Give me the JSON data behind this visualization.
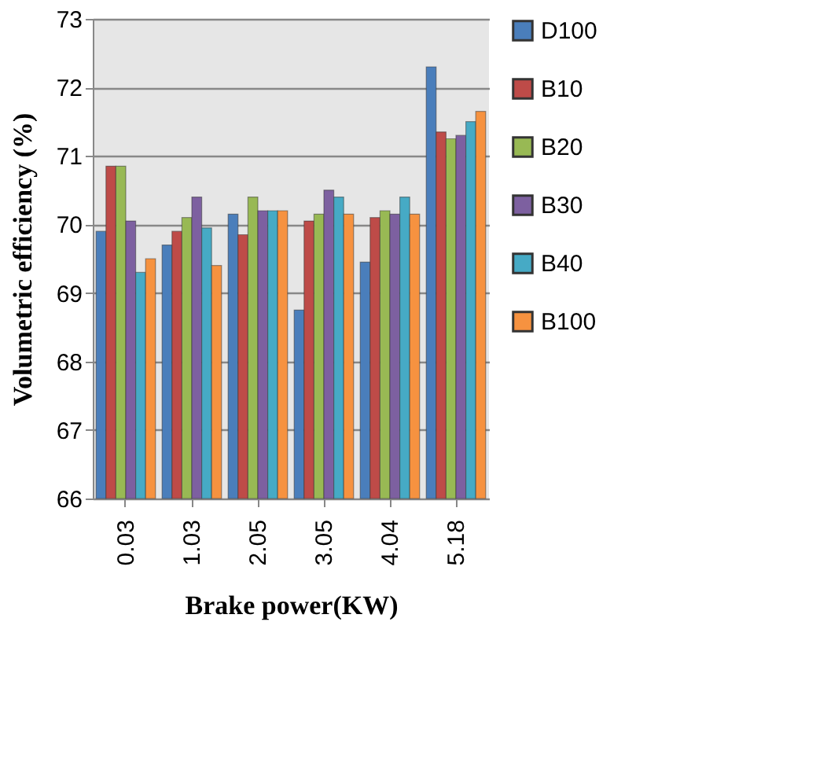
{
  "chart_data": {
    "type": "bar",
    "xlabel": "Brake power(KW)",
    "ylabel": "Volumetric efficiency (%)",
    "categories": [
      "0.03",
      "1.03",
      "2.05",
      "3.05",
      "4.04",
      "5.18"
    ],
    "series": [
      {
        "name": "D100",
        "color": "#4a7ebb",
        "values": [
          69.9,
          69.7,
          70.15,
          68.75,
          69.45,
          72.3
        ]
      },
      {
        "name": "B10",
        "color": "#be4b48",
        "values": [
          70.85,
          69.9,
          69.85,
          70.05,
          70.1,
          71.35
        ]
      },
      {
        "name": "B20",
        "color": "#98b954",
        "values": [
          70.85,
          70.1,
          70.4,
          70.15,
          70.2,
          71.25
        ]
      },
      {
        "name": "B30",
        "color": "#7d60a0",
        "values": [
          70.05,
          70.4,
          70.2,
          70.5,
          70.15,
          71.3
        ]
      },
      {
        "name": "B40",
        "color": "#46aac5",
        "values": [
          69.3,
          69.95,
          70.2,
          70.4,
          70.4,
          71.5
        ]
      },
      {
        "name": "B100",
        "color": "#f69240",
        "values": [
          69.5,
          69.4,
          70.2,
          70.15,
          70.15,
          71.65
        ]
      }
    ],
    "ylim": [
      66,
      73
    ],
    "yticks": [
      66,
      67,
      68,
      69,
      70,
      71,
      72,
      73
    ],
    "grid": "y",
    "legend": "right"
  }
}
